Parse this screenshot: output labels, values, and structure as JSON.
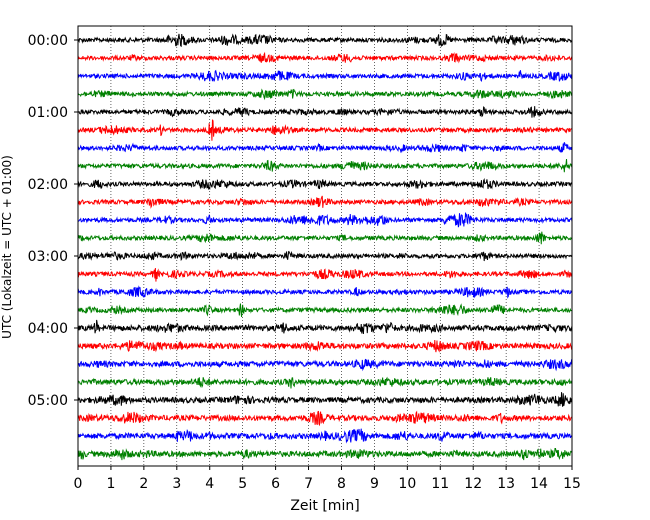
{
  "chart_data": {
    "type": "line",
    "xlabel": "Zeit  [min]",
    "ylabel": "UTC (Lokalzeit = UTC + 01:00)",
    "xlim": [
      0,
      15
    ],
    "x_ticks": [
      "0",
      "1",
      "2",
      "3",
      "4",
      "5",
      "6",
      "7",
      "8",
      "9",
      "10",
      "11",
      "12",
      "13",
      "14",
      "15"
    ],
    "y_ticks": [
      "00:00",
      "01:00",
      "02:00",
      "03:00",
      "04:00",
      "05:00"
    ],
    "vertical_grid": true,
    "trace_interval_min": 15,
    "trace_count": 24,
    "trace_colors": [
      "#000000",
      "#ff0000",
      "#0000ff",
      "#008000"
    ],
    "events": [
      {
        "trace": 5,
        "time_min": 4.05,
        "amplitude": 11
      },
      {
        "trace": 13,
        "time_min": 2.35,
        "amplitude": 6
      },
      {
        "trace": 15,
        "time_min": 4.95,
        "amplitude": 6
      },
      {
        "trace": 16,
        "time_min": 0.55,
        "amplitude": 6
      },
      {
        "trace": 7,
        "time_min": 14.8,
        "amplitude": 5
      },
      {
        "trace": 11,
        "time_min": 14.1,
        "amplitude": 5
      },
      {
        "trace": 23,
        "time_min": 0.1,
        "amplitude": 5
      },
      {
        "trace": 2,
        "time_min": 13.4,
        "amplitude": 5
      }
    ]
  }
}
